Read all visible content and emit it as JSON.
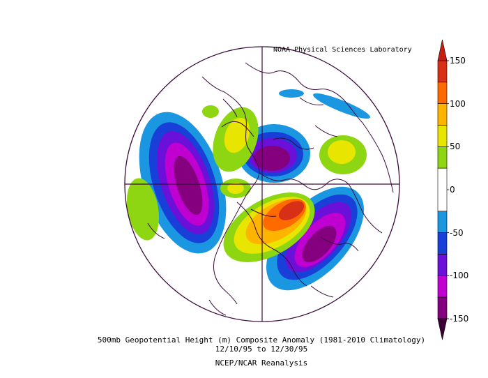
{
  "credit": "NOAA Physical Sciences Laboratory",
  "caption": {
    "line1": "500mb Geopotential Height (m) Composite Anomaly (1981-2010 Climatology)",
    "line2": "12/10/95  to 12/30/95",
    "line3": "NCEP/NCAR Reanalysis"
  },
  "colorbar": {
    "labels": [
      "150",
      "100",
      "50",
      "0",
      "-50",
      "-100",
      "-150"
    ],
    "bins": [
      {
        "from": 125,
        "to": 150,
        "color": "#d73016"
      },
      {
        "from": 100,
        "to": 125,
        "color": "#ff6a00"
      },
      {
        "from": 75,
        "to": 100,
        "color": "#ffb400"
      },
      {
        "from": 50,
        "to": 75,
        "color": "#e8e500"
      },
      {
        "from": 25,
        "to": 50,
        "color": "#8ed611"
      },
      {
        "from": -25,
        "to": 25,
        "color": "#ffffff"
      },
      {
        "from": -50,
        "to": -25,
        "color": "#1b96e0"
      },
      {
        "from": -75,
        "to": -50,
        "color": "#1840d8"
      },
      {
        "from": -100,
        "to": -75,
        "color": "#6a10d8"
      },
      {
        "from": -125,
        "to": -100,
        "color": "#c000d0"
      },
      {
        "from": -150,
        "to": -125,
        "color": "#84007e"
      }
    ],
    "over_color": "#c81e10",
    "under_color": "#3c0036"
  },
  "colors": {
    "border": "#3a0a3a",
    "background": "#ffffff"
  }
}
